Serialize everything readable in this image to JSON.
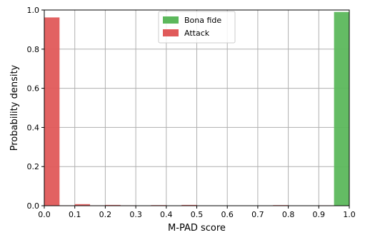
{
  "chart_data": {
    "type": "bar",
    "xlabel": "M-PAD score",
    "ylabel": "Probability density",
    "xlim": [
      0.0,
      1.0
    ],
    "ylim": [
      0.0,
      1.0
    ],
    "grid": true,
    "legend_position": "top-center",
    "bin_width": 0.05,
    "x_ticks": [
      "0.0",
      "0.1",
      "0.2",
      "0.3",
      "0.4",
      "0.5",
      "0.6",
      "0.7",
      "0.8",
      "0.9",
      "1.0"
    ],
    "y_ticks": [
      "0.0",
      "0.2",
      "0.4",
      "0.6",
      "0.8",
      "1.0"
    ],
    "series": [
      {
        "name": "Bona fide",
        "color": "#5cb85c",
        "bins": [
          {
            "x": 0.95,
            "value": 0.99
          }
        ]
      },
      {
        "name": "Attack",
        "color": "#e05a5a",
        "bins": [
          {
            "x": 0.0,
            "value": 0.962
          },
          {
            "x": 0.05,
            "value": 0.002
          },
          {
            "x": 0.1,
            "value": 0.008
          },
          {
            "x": 0.15,
            "value": 0.002
          },
          {
            "x": 0.2,
            "value": 0.004
          },
          {
            "x": 0.25,
            "value": 0.002
          },
          {
            "x": 0.35,
            "value": 0.003
          },
          {
            "x": 0.45,
            "value": 0.004
          },
          {
            "x": 0.75,
            "value": 0.003
          },
          {
            "x": 0.9,
            "value": 0.002
          }
        ]
      }
    ]
  }
}
